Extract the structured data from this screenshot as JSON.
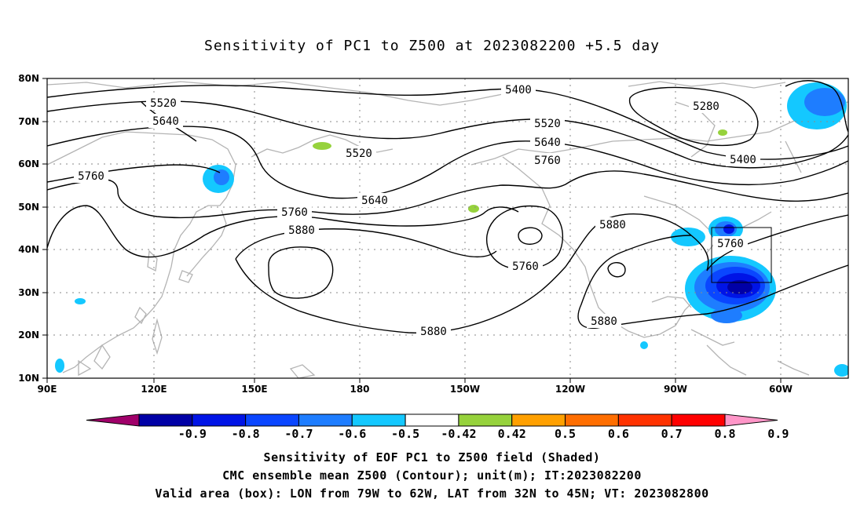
{
  "title": "Sensitivity of PC1 to Z500 at 2023082200 +5.5 day",
  "lat_labels": [
    "80N",
    "70N",
    "60N",
    "50N",
    "40N",
    "30N",
    "20N",
    "10N"
  ],
  "lon_labels": [
    "90E",
    "120E",
    "150E",
    "180",
    "150W",
    "120W",
    "90W",
    "60W"
  ],
  "contour_labels": [
    {
      "text": "5400",
      "id": "5400-north-pacific"
    },
    {
      "text": "5520",
      "id": "5520-northwest"
    },
    {
      "text": "5640",
      "id": "5640-northwest"
    },
    {
      "text": "5760",
      "id": "5760-asia"
    },
    {
      "text": "5520",
      "id": "5520-kamchatka"
    },
    {
      "text": "5640",
      "id": "5640-central-pacific"
    },
    {
      "text": "5760",
      "id": "5760-pacific"
    },
    {
      "text": "5880",
      "id": "5880-west-pacific"
    },
    {
      "text": "5520",
      "id": "5520-gulf-alaska"
    },
    {
      "text": "5640",
      "id": "5640-north-america"
    },
    {
      "text": "5760",
      "id": "5760-north-america"
    },
    {
      "text": "5280",
      "id": "5280-hudson"
    },
    {
      "text": "5400",
      "id": "5400-labrador"
    },
    {
      "text": "5760",
      "id": "5760-cutoff-low"
    },
    {
      "text": "5880",
      "id": "5880-east-pacific"
    },
    {
      "text": "5880",
      "id": "5880-us"
    },
    {
      "text": "5880",
      "id": "5880-mexico"
    },
    {
      "text": "5760",
      "id": "5760-east-coast"
    }
  ],
  "colorbar": {
    "labels": [
      "-0.9",
      "-0.8",
      "-0.7",
      "-0.6",
      "-0.5",
      "-0.42",
      "0.42",
      "0.5",
      "0.6",
      "0.7",
      "0.8",
      "0.9"
    ],
    "colors": [
      "#a0006a",
      "#0000a6",
      "#0014e6",
      "#0a46ff",
      "#1e7dff",
      "#14c8ff",
      "#ffffff",
      "#96d23c",
      "#ffa000",
      "#ff6e00",
      "#ff3200",
      "#ff0000",
      "#ff96c8"
    ]
  },
  "caption": {
    "line1": "Sensitivity of EOF PC1 to Z500 field (Shaded)",
    "line2": "CMC ensemble mean Z500 (Contour); unit(m); IT:2023082200",
    "line3": "Valid area (box): LON from 79W to 62W, LAT from 32N to 45N; VT: 2023082800"
  }
}
